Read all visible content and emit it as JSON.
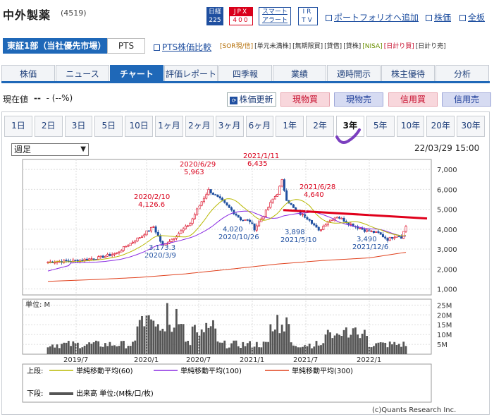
{
  "header": {
    "title": "中外製薬",
    "code": "(4519)",
    "badges": {
      "nikkei_top": "日経",
      "nikkei_bottom": "225",
      "jpx_top": "JPX",
      "jpx_bottom": "400",
      "smart_top": "スマート",
      "smart_bottom": "アラート",
      "ir_top": "IR",
      "ir_bottom": "TV"
    },
    "links": {
      "portfolio": "ポートフォリオへ追加",
      "price": "株価",
      "board": "全板"
    }
  },
  "market": {
    "label": "東証1部（当社優先市場）",
    "pts": "PTS",
    "pts_compare": "PTS株価比較"
  },
  "order_badges": [
    "[SOR現/信]",
    "[単元未満株]",
    "[無期限買]",
    "[貸借]",
    "[貸株]",
    "[NISA]",
    "[日計り買]",
    "[日計り売]"
  ],
  "nav": [
    "株価",
    "ニュース",
    "チャート",
    "評価レポート",
    "四季報",
    "業績",
    "適時開示",
    "株主優待",
    "分析"
  ],
  "nav_active": 2,
  "price": {
    "label": "現在値",
    "value": "--",
    "change": "- (--%)"
  },
  "actions": {
    "update": "株価更新",
    "buy": "現物買",
    "sell": "現物売",
    "margin_buy": "信用買",
    "margin_sell": "信用売"
  },
  "periods": [
    "1日",
    "2日",
    "3日",
    "5日",
    "10日",
    "1ヶ月",
    "2ヶ月",
    "3ヶ月",
    "6ヶ月",
    "1年",
    "2年",
    "3年",
    "5年",
    "10年",
    "20年",
    "30年"
  ],
  "period_active": 11,
  "select": {
    "value": "週足"
  },
  "timestamp": "22/03/29 15:00",
  "colors": {
    "up": "#d9001b",
    "down": "#1f4fa0",
    "ma60": "#b8b800",
    "ma100": "#8a2be2",
    "ma300": "#e0401c",
    "trend": "#e0001b"
  },
  "chart_data": {
    "type": "candlestick",
    "price_axis": {
      "ylim": [
        1000,
        7000
      ],
      "ticks": [
        "7,000",
        "6,000",
        "5,000",
        "4,000",
        "3,000",
        "2,000",
        "1,000"
      ]
    },
    "volume_axis": {
      "unit_label": "単位: M",
      "ticks": [
        "25M",
        "20M",
        "15M",
        "10M",
        "5M"
      ]
    },
    "x_ticks": [
      "2019/7",
      "2020/1",
      "2020/7",
      "2021/1",
      "2021/7",
      "2022/1"
    ],
    "annotations": [
      {
        "date": "2020/2/10",
        "value": "4,126.6",
        "kind": "high"
      },
      {
        "date": "2020/3/9",
        "value": "3,173.3",
        "kind": "low"
      },
      {
        "date": "2020/6/29",
        "value": "5,963",
        "kind": "high"
      },
      {
        "date": "2020/10/26",
        "value": "4,020",
        "kind": "low"
      },
      {
        "date": "2021/1/11",
        "value": "6,435",
        "kind": "high"
      },
      {
        "date": "2021/5/10",
        "value": "3,898",
        "kind": "low"
      },
      {
        "date": "2021/6/28",
        "value": "4,640",
        "kind": "high"
      },
      {
        "date": "2021/12/6",
        "value": "3,490",
        "kind": "low"
      }
    ],
    "legend": {
      "upper_label": "上段:",
      "lower_label": "下段:",
      "ma60": "単純移動平均(60)",
      "ma100": "単純移動平均(100)",
      "ma300": "単純移動平均(300)",
      "volume": "出来高 単位:(M株/口/枚)"
    },
    "ma300_points": [
      [
        0,
        1380
      ],
      [
        20,
        1470
      ],
      [
        40,
        1580
      ],
      [
        60,
        1760
      ],
      [
        80,
        2000
      ],
      [
        100,
        2250
      ],
      [
        120,
        2430
      ],
      [
        140,
        2560
      ],
      [
        156,
        2840
      ]
    ]
  },
  "credit": "(c)Quants Research Inc."
}
